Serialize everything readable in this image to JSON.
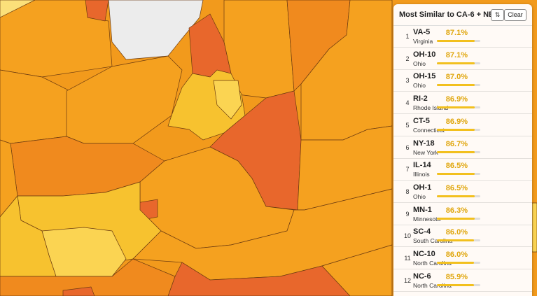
{
  "panel": {
    "title": "Most Similar to CA-6 + NE...",
    "sort_button": "⇅",
    "clear_button": "Clear",
    "items": [
      {
        "rank": 1,
        "code": "VA-5",
        "state": "Virginia",
        "similarity": 87.1,
        "similarity_label": "87.1%"
      },
      {
        "rank": 2,
        "code": "OH-10",
        "state": "Ohio",
        "similarity": 87.1,
        "similarity_label": "87.1%"
      },
      {
        "rank": 3,
        "code": "OH-15",
        "state": "Ohio",
        "similarity": 87.0,
        "similarity_label": "87.0%"
      },
      {
        "rank": 4,
        "code": "RI-2",
        "state": "Rhode Island",
        "similarity": 86.9,
        "similarity_label": "86.9%"
      },
      {
        "rank": 5,
        "code": "CT-5",
        "state": "Connecticut",
        "similarity": 86.9,
        "similarity_label": "86.9%"
      },
      {
        "rank": 6,
        "code": "NY-18",
        "state": "New York",
        "similarity": 86.7,
        "similarity_label": "86.7%"
      },
      {
        "rank": 7,
        "code": "IL-14",
        "state": "Illinois",
        "similarity": 86.5,
        "similarity_label": "86.5%"
      },
      {
        "rank": 8,
        "code": "OH-1",
        "state": "Ohio",
        "similarity": 86.5,
        "similarity_label": "86.5%"
      },
      {
        "rank": 9,
        "code": "MN-1",
        "state": "Minnesota",
        "similarity": 86.3,
        "similarity_label": "86.3%"
      },
      {
        "rank": 10,
        "code": "SC-4",
        "state": "South Carolina",
        "similarity": 86.0,
        "similarity_label": "86.0%"
      },
      {
        "rank": 11,
        "code": "NC-10",
        "state": "North Carolina",
        "similarity": 86.0,
        "similarity_label": "86.0%"
      },
      {
        "rank": 12,
        "code": "NC-6",
        "state": "North Carolina",
        "similarity": 85.9,
        "similarity_label": "85.9%"
      }
    ]
  }
}
